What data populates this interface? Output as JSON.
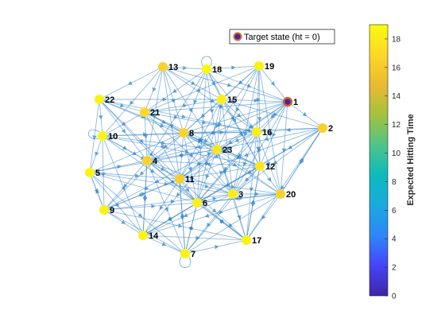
{
  "chart_data": {
    "type": "network",
    "legend": {
      "label": "Target state (ht = 0)",
      "placement": "top-right"
    },
    "colorbar": {
      "label": "Expected  Hitting  Time",
      "range": [
        0,
        19
      ],
      "ticks": [
        "0",
        "2",
        "4",
        "6",
        "8",
        "10",
        "12",
        "14",
        "16",
        "18"
      ],
      "colormap": [
        "#3e26a8",
        "#4743f8",
        "#2e87f7",
        "#1ba9de",
        "#0cbbbb",
        "#4ec48a",
        "#a4c13f",
        "#eaba30",
        "#fdd827",
        "#f9fb0e"
      ]
    },
    "target_node": "1",
    "nodes": [
      {
        "id": "1",
        "label": "1",
        "ht": 0
      },
      {
        "id": "2",
        "label": "2",
        "ht": 16.3
      },
      {
        "id": "3",
        "label": "3",
        "ht": 18.2
      },
      {
        "id": "4",
        "label": "4",
        "ht": 16.5
      },
      {
        "id": "5",
        "label": "5",
        "ht": 18.6
      },
      {
        "id": "6",
        "label": "6",
        "ht": 18.3
      },
      {
        "id": "7",
        "label": "7",
        "ht": 18.6
      },
      {
        "id": "8",
        "label": "8",
        "ht": 16.6
      },
      {
        "id": "9",
        "label": "9",
        "ht": 18.4
      },
      {
        "id": "10",
        "label": "10",
        "ht": 18.7
      },
      {
        "id": "11",
        "label": "11",
        "ht": 16.2
      },
      {
        "id": "12",
        "label": "12",
        "ht": 17.8
      },
      {
        "id": "13",
        "label": "13",
        "ht": 16.4
      },
      {
        "id": "14",
        "label": "14",
        "ht": 18.5
      },
      {
        "id": "15",
        "label": "15",
        "ht": 18.3
      },
      {
        "id": "16",
        "label": "16",
        "ht": 18.2
      },
      {
        "id": "17",
        "label": "17",
        "ht": 18.6
      },
      {
        "id": "18",
        "label": "18",
        "ht": 18.8
      },
      {
        "id": "19",
        "label": "19",
        "ht": 18.4
      },
      {
        "id": "20",
        "label": "20",
        "ht": 16.3
      },
      {
        "id": "21",
        "label": "21",
        "ht": 16.9
      },
      {
        "id": "22",
        "label": "22",
        "ht": 18.5
      },
      {
        "id": "23",
        "label": "23",
        "ht": 17.6
      }
    ],
    "self_loops": [
      "7",
      "10",
      "18"
    ],
    "edges": [
      [
        "13",
        "18"
      ],
      [
        "13",
        "22"
      ],
      [
        "13",
        "21"
      ],
      [
        "13",
        "8"
      ],
      [
        "13",
        "15"
      ],
      [
        "13",
        "23"
      ],
      [
        "13",
        "11"
      ],
      [
        "13",
        "1"
      ],
      [
        "13",
        "16"
      ],
      [
        "13",
        "4"
      ],
      [
        "13",
        "10"
      ],
      [
        "18",
        "19"
      ],
      [
        "18",
        "15"
      ],
      [
        "18",
        "21"
      ],
      [
        "18",
        "8"
      ],
      [
        "18",
        "16"
      ],
      [
        "18",
        "1"
      ],
      [
        "18",
        "23"
      ],
      [
        "18",
        "12"
      ],
      [
        "18",
        "6"
      ],
      [
        "18",
        "4"
      ],
      [
        "19",
        "1"
      ],
      [
        "19",
        "15"
      ],
      [
        "19",
        "16"
      ],
      [
        "19",
        "23"
      ],
      [
        "19",
        "8"
      ],
      [
        "19",
        "12"
      ],
      [
        "19",
        "20"
      ],
      [
        "19",
        "21"
      ],
      [
        "19",
        "3"
      ],
      [
        "19",
        "11"
      ],
      [
        "22",
        "21"
      ],
      [
        "22",
        "10"
      ],
      [
        "22",
        "8"
      ],
      [
        "22",
        "23"
      ],
      [
        "22",
        "4"
      ],
      [
        "22",
        "15"
      ],
      [
        "22",
        "16"
      ],
      [
        "22",
        "11"
      ],
      [
        "22",
        "5"
      ],
      [
        "22",
        "6"
      ],
      [
        "21",
        "15"
      ],
      [
        "21",
        "8"
      ],
      [
        "21",
        "4"
      ],
      [
        "21",
        "10"
      ],
      [
        "21",
        "23"
      ],
      [
        "21",
        "16"
      ],
      [
        "21",
        "11"
      ],
      [
        "21",
        "1"
      ],
      [
        "21",
        "3"
      ],
      [
        "21",
        "12"
      ],
      [
        "15",
        "1"
      ],
      [
        "15",
        "16"
      ],
      [
        "15",
        "23"
      ],
      [
        "15",
        "8"
      ],
      [
        "15",
        "12"
      ],
      [
        "15",
        "2"
      ],
      [
        "15",
        "11"
      ],
      [
        "15",
        "6"
      ],
      [
        "15",
        "3"
      ],
      [
        "1",
        "2"
      ],
      [
        "1",
        "16"
      ],
      [
        "1",
        "23"
      ],
      [
        "1",
        "12"
      ],
      [
        "1",
        "20"
      ],
      [
        "1",
        "3"
      ],
      [
        "1",
        "8"
      ],
      [
        "1",
        "11"
      ],
      [
        "1",
        "4"
      ],
      [
        "1",
        "6"
      ],
      [
        "2",
        "16"
      ],
      [
        "2",
        "12"
      ],
      [
        "2",
        "20"
      ],
      [
        "2",
        "23"
      ],
      [
        "2",
        "3"
      ],
      [
        "2",
        "17"
      ],
      [
        "2",
        "8"
      ],
      [
        "2",
        "11"
      ],
      [
        "2",
        "6"
      ],
      [
        "10",
        "8"
      ],
      [
        "10",
        "4"
      ],
      [
        "10",
        "5"
      ],
      [
        "10",
        "23"
      ],
      [
        "10",
        "11"
      ],
      [
        "10",
        "9"
      ],
      [
        "10",
        "16"
      ],
      [
        "10",
        "6"
      ],
      [
        "10",
        "14"
      ],
      [
        "10",
        "12"
      ],
      [
        "8",
        "23"
      ],
      [
        "8",
        "16"
      ],
      [
        "8",
        "4"
      ],
      [
        "8",
        "11"
      ],
      [
        "8",
        "12"
      ],
      [
        "8",
        "6"
      ],
      [
        "8",
        "3"
      ],
      [
        "8",
        "5"
      ],
      [
        "8",
        "9"
      ],
      [
        "8",
        "20"
      ],
      [
        "16",
        "23"
      ],
      [
        "16",
        "12"
      ],
      [
        "16",
        "3"
      ],
      [
        "16",
        "20"
      ],
      [
        "16",
        "11"
      ],
      [
        "16",
        "6"
      ],
      [
        "16",
        "4"
      ],
      [
        "16",
        "17"
      ],
      [
        "23",
        "12"
      ],
      [
        "23",
        "4"
      ],
      [
        "23",
        "11"
      ],
      [
        "23",
        "6"
      ],
      [
        "23",
        "3"
      ],
      [
        "23",
        "20"
      ],
      [
        "23",
        "17"
      ],
      [
        "23",
        "14"
      ],
      [
        "23",
        "5"
      ],
      [
        "23",
        "9"
      ],
      [
        "5",
        "4"
      ],
      [
        "5",
        "9"
      ],
      [
        "5",
        "11"
      ],
      [
        "5",
        "6"
      ],
      [
        "5",
        "14"
      ],
      [
        "5",
        "3"
      ],
      [
        "5",
        "7"
      ],
      [
        "4",
        "11"
      ],
      [
        "4",
        "9"
      ],
      [
        "4",
        "14"
      ],
      [
        "4",
        "6"
      ],
      [
        "4",
        "3"
      ],
      [
        "4",
        "7"
      ],
      [
        "4",
        "12"
      ],
      [
        "4",
        "17"
      ],
      [
        "11",
        "6"
      ],
      [
        "11",
        "3"
      ],
      [
        "11",
        "12"
      ],
      [
        "11",
        "14"
      ],
      [
        "11",
        "7"
      ],
      [
        "11",
        "17"
      ],
      [
        "11",
        "20"
      ],
      [
        "11",
        "9"
      ],
      [
        "12",
        "3"
      ],
      [
        "12",
        "20"
      ],
      [
        "12",
        "6"
      ],
      [
        "12",
        "17"
      ],
      [
        "12",
        "14"
      ],
      [
        "12",
        "7"
      ],
      [
        "9",
        "14"
      ],
      [
        "9",
        "6"
      ],
      [
        "9",
        "7"
      ],
      [
        "9",
        "3"
      ],
      [
        "9",
        "17"
      ],
      [
        "9",
        "11"
      ],
      [
        "6",
        "3"
      ],
      [
        "6",
        "7"
      ],
      [
        "6",
        "14"
      ],
      [
        "6",
        "17"
      ],
      [
        "6",
        "20"
      ],
      [
        "3",
        "20"
      ],
      [
        "3",
        "17"
      ],
      [
        "3",
        "7"
      ],
      [
        "3",
        "14"
      ],
      [
        "20",
        "17"
      ],
      [
        "20",
        "7"
      ],
      [
        "20",
        "14"
      ],
      [
        "20",
        "6"
      ],
      [
        "14",
        "7"
      ],
      [
        "14",
        "17"
      ],
      [
        "14",
        "6"
      ],
      [
        "7",
        "17"
      ],
      [
        "7",
        "6"
      ],
      [
        "17",
        "6"
      ],
      [
        "17",
        "12"
      ],
      [
        "7",
        "11"
      ],
      [
        "14",
        "4"
      ],
      [
        "9",
        "5"
      ],
      [
        "20",
        "2"
      ]
    ]
  }
}
